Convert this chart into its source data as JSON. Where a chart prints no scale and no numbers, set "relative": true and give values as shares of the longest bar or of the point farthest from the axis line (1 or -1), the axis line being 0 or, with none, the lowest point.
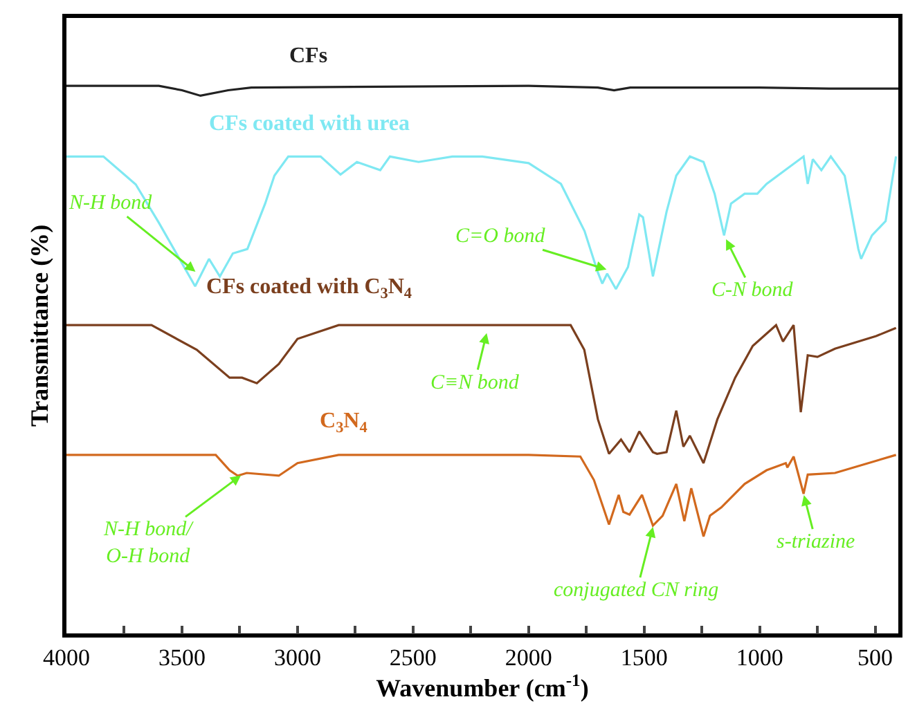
{
  "chart_data": {
    "type": "line",
    "relative": true,
    "xlabel": "Wavenumber (cm$^{-1}$)",
    "ylabel": "Transmittance (%)",
    "xlim": [
      4000,
      400
    ],
    "xticks": [
      4000,
      {
        "value": 3750,
        "label": null
      },
      3500,
      {
        "value": 3250,
        "label": null
      },
      3000,
      {
        "value": 2750,
        "label": null
      },
      2500,
      {
        "value": 2250,
        "label": null
      },
      2000,
      {
        "value": 1750,
        "label": null
      },
      1500,
      {
        "value": 1250,
        "label": null
      },
      1000,
      {
        "value": 750,
        "label": null
      },
      500
    ],
    "legend": false,
    "marker": "none",
    "line_style": "solid",
    "series": [
      {
        "name": "CFs",
        "color": "#222222",
        "x": [
          4000,
          3600,
          3500,
          3420,
          3300,
          3200,
          2000,
          1700,
          1630,
          1560,
          1000,
          700,
          400
        ],
        "values": [
          1.0,
          1.0,
          0.992,
          0.982,
          0.992,
          0.997,
          1.0,
          0.997,
          0.992,
          0.997,
          0.997,
          0.995,
          0.995
        ]
      },
      {
        "name": "CFs coated with urea",
        "color": "#7fe8f2",
        "x": [
          4000,
          3840,
          3700,
          3600,
          3443,
          3383,
          3336,
          3280,
          3217,
          3140,
          3100,
          3040,
          2900,
          2814,
          2743,
          2642,
          2600,
          2476,
          2330,
          2200,
          2000,
          1860,
          1758,
          1700,
          1681,
          1660,
          1622,
          1570,
          1521,
          1505,
          1462,
          1403,
          1361,
          1302,
          1243,
          1195,
          1154,
          1124,
          1065,
          1010,
          970,
          810,
          792,
          770,
          733,
          692,
          632,
          573,
          561,
          514,
          455,
          410
        ],
        "values": [
          0.871,
          0.871,
          0.82,
          0.75,
          0.634,
          0.684,
          0.652,
          0.694,
          0.702,
          0.785,
          0.836,
          0.871,
          0.871,
          0.838,
          0.861,
          0.846,
          0.871,
          0.861,
          0.871,
          0.871,
          0.859,
          0.821,
          0.735,
          0.659,
          0.639,
          0.657,
          0.629,
          0.669,
          0.765,
          0.76,
          0.652,
          0.77,
          0.836,
          0.871,
          0.861,
          0.803,
          0.727,
          0.785,
          0.803,
          0.803,
          0.821,
          0.871,
          0.821,
          0.866,
          0.846,
          0.871,
          0.836,
          0.702,
          0.684,
          0.727,
          0.753,
          0.871
        ]
      },
      {
        "name": "CFs coated with C$_{3}$N$_{4}$",
        "color": "#7b3f1e",
        "x": [
          4000,
          3632,
          3436,
          3294,
          3240,
          3176,
          3081,
          3000,
          2822,
          2000,
          1818,
          1759,
          1700,
          1652,
          1600,
          1563,
          1521,
          1462,
          1444,
          1403,
          1361,
          1330,
          1302,
          1243,
          1183,
          1106,
          1030,
          929,
          899,
          853,
          822,
          792,
          750,
          674,
          496,
          410
        ],
        "values": [
          0.563,
          0.563,
          0.518,
          0.467,
          0.467,
          0.457,
          0.492,
          0.538,
          0.563,
          0.563,
          0.563,
          0.518,
          0.391,
          0.328,
          0.354,
          0.331,
          0.369,
          0.331,
          0.328,
          0.331,
          0.407,
          0.341,
          0.361,
          0.311,
          0.391,
          0.467,
          0.525,
          0.563,
          0.533,
          0.563,
          0.404,
          0.508,
          0.505,
          0.52,
          0.543,
          0.558
        ]
      },
      {
        "name": "C$_{3}$N$_{4}$",
        "color": "#d2691e",
        "x": [
          4000,
          3354,
          3294,
          3259,
          3220,
          3081,
          3000,
          2822,
          2000,
          1776,
          1717,
          1652,
          1610,
          1590,
          1563,
          1509,
          1462,
          1420,
          1361,
          1326,
          1296,
          1243,
          1215,
          1166,
          1065,
          970,
          887,
          880,
          853,
          810,
          792,
          674,
          410
        ],
        "values": [
          0.326,
          0.326,
          0.298,
          0.288,
          0.293,
          0.288,
          0.311,
          0.326,
          0.326,
          0.323,
          0.28,
          0.199,
          0.253,
          0.222,
          0.217,
          0.253,
          0.197,
          0.215,
          0.273,
          0.205,
          0.265,
          0.177,
          0.215,
          0.23,
          0.273,
          0.298,
          0.311,
          0.303,
          0.323,
          0.255,
          0.29,
          0.293,
          0.326
        ]
      }
    ],
    "annotations": [
      {
        "text": "N-H bond",
        "x": 3437,
        "y": 0.659
      },
      {
        "text": "C=O bond",
        "x": 1657,
        "y": 0.664
      },
      {
        "text": "C-N bond",
        "x": 1148,
        "y": 0.722
      },
      {
        "text": "C≡N bond",
        "x": 2180,
        "y": 0.551
      },
      {
        "text": "N-H bond/\nO-H bond",
        "x": 3240,
        "y": 0.29
      },
      {
        "text": "conjugated CN ring",
        "x": 1460,
        "y": 0.197
      },
      {
        "text": "s-triazine",
        "x": 810,
        "y": 0.255
      }
    ]
  }
}
